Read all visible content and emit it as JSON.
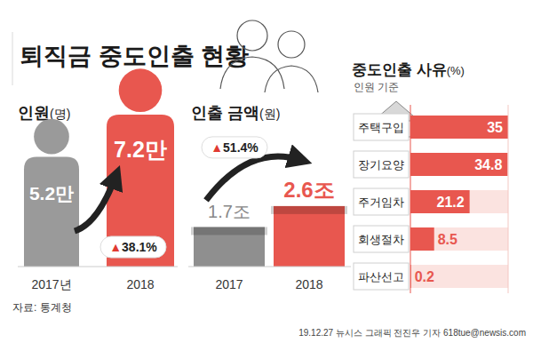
{
  "header": {
    "title": "퇴직금 중도인출 현황"
  },
  "footer": {
    "source": "자료: 통계청",
    "credit": "19.12.27 뉴시스 그래픽 전진우 기자 618tue@newsis.com"
  },
  "chart_data": [
    {
      "type": "bar",
      "title": "인원(명)",
      "categories": [
        "2017년",
        "2018"
      ],
      "values": [
        5.2,
        7.2
      ],
      "value_labels": [
        "5.2만",
        "7.2만"
      ],
      "colors": [
        "#9a9a9a",
        "#e8574f"
      ],
      "ylim": [
        0,
        8
      ],
      "data_labels": true,
      "tick_labels": "x",
      "annotations": [
        "▲38.1%"
      ]
    },
    {
      "type": "bar",
      "title": "인출 금액(원)",
      "categories": [
        "2017",
        "2018"
      ],
      "values": [
        1.7,
        2.6
      ],
      "value_labels": [
        "1.7조",
        "2.6조"
      ],
      "colors": [
        "#8f8f8f",
        "#e8574f"
      ],
      "ylim": [
        0,
        4.2
      ],
      "data_labels": true,
      "tick_labels": "x",
      "annotations": [
        "▲51.4%"
      ]
    },
    {
      "type": "bar",
      "orientation": "horizontal",
      "title": "중도인출 사유(%)",
      "subtitle": "인원 기준",
      "categories": [
        "주택구입",
        "장기요양",
        "주거임차",
        "회생절차",
        "파산선고"
      ],
      "values": [
        35,
        34.8,
        21.2,
        8.5,
        0.2
      ],
      "color": "#e8574f",
      "xlim": [
        0,
        35
      ],
      "data_labels": true,
      "tick_labels": "y"
    }
  ]
}
